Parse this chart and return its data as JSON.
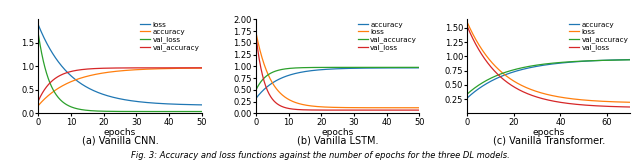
{
  "fig_width": 6.4,
  "fig_height": 1.62,
  "dpi": 100,
  "subplots": [
    {
      "subtitle": "(a) Vanilla CNN.",
      "xlabel": "epochs",
      "xlim": [
        0,
        50
      ],
      "ylim": [
        0.0,
        2.0
      ],
      "yticks": [
        0.0,
        0.5,
        1.0,
        1.5
      ],
      "xticks": [
        0,
        10,
        20,
        30,
        40,
        50
      ],
      "legend_order": [
        "loss",
        "accuracy",
        "val_loss",
        "val_accuracy"
      ],
      "curves": {
        "loss": {
          "color": "#1f77b4",
          "start": 1.88,
          "end": 0.17,
          "k": 0.1
        },
        "accuracy": {
          "color": "#ff7f0e",
          "start": 0.17,
          "end": 0.97,
          "k": 0.1,
          "rise": true
        },
        "val_loss": {
          "color": "#2ca02c",
          "start": 1.68,
          "end": 0.04,
          "k": 0.28
        },
        "val_accuracy": {
          "color": "#d62728",
          "start": 0.27,
          "end": 0.97,
          "k": 0.22,
          "rise": true
        }
      }
    },
    {
      "subtitle": "(b) Vanilla LSTM.",
      "xlabel": "epochs",
      "xlim": [
        0,
        50
      ],
      "ylim": [
        0.0,
        2.0
      ],
      "yticks": [
        0.0,
        0.25,
        0.5,
        0.75,
        1.0,
        1.25,
        1.5,
        1.75,
        2.0
      ],
      "xticks": [
        0,
        10,
        20,
        30,
        40,
        50
      ],
      "legend_order": [
        "accuracy",
        "loss",
        "val_accuracy",
        "val_loss"
      ],
      "curves": {
        "accuracy": {
          "color": "#1f77b4",
          "start": 0.32,
          "end": 0.97,
          "k": 0.14,
          "rise": true
        },
        "loss": {
          "color": "#ff7f0e",
          "start": 1.72,
          "end": 0.12,
          "k": 0.22
        },
        "val_accuracy": {
          "color": "#2ca02c",
          "start": 0.5,
          "end": 0.98,
          "k": 0.3,
          "rise": true
        },
        "val_loss": {
          "color": "#d62728",
          "start": 1.65,
          "end": 0.07,
          "k": 0.38
        }
      }
    },
    {
      "subtitle": "(c) Vanilla Transformer.",
      "xlabel": "epochs",
      "xlim": [
        0,
        70
      ],
      "ylim": [
        0.0,
        1.65
      ],
      "yticks": [
        0.25,
        0.5,
        0.75,
        1.0,
        1.25,
        1.5
      ],
      "xticks": [
        0,
        20,
        40,
        60
      ],
      "legend_order": [
        "accuracy",
        "loss",
        "val_accuracy",
        "val_loss"
      ],
      "curves": {
        "accuracy": {
          "color": "#1f77b4",
          "start": 0.27,
          "end": 0.96,
          "k": 0.055,
          "rise": true
        },
        "loss": {
          "color": "#ff7f0e",
          "start": 1.6,
          "end": 0.18,
          "k": 0.065
        },
        "val_accuracy": {
          "color": "#2ca02c",
          "start": 0.34,
          "end": 0.95,
          "k": 0.06,
          "rise": true
        },
        "val_loss": {
          "color": "#d62728",
          "start": 1.53,
          "end": 0.1,
          "k": 0.068
        }
      }
    }
  ],
  "caption": "Fig. 3: Accuracy and loss functions against the number of epochs for the three DL models.",
  "background_color": "#ffffff"
}
